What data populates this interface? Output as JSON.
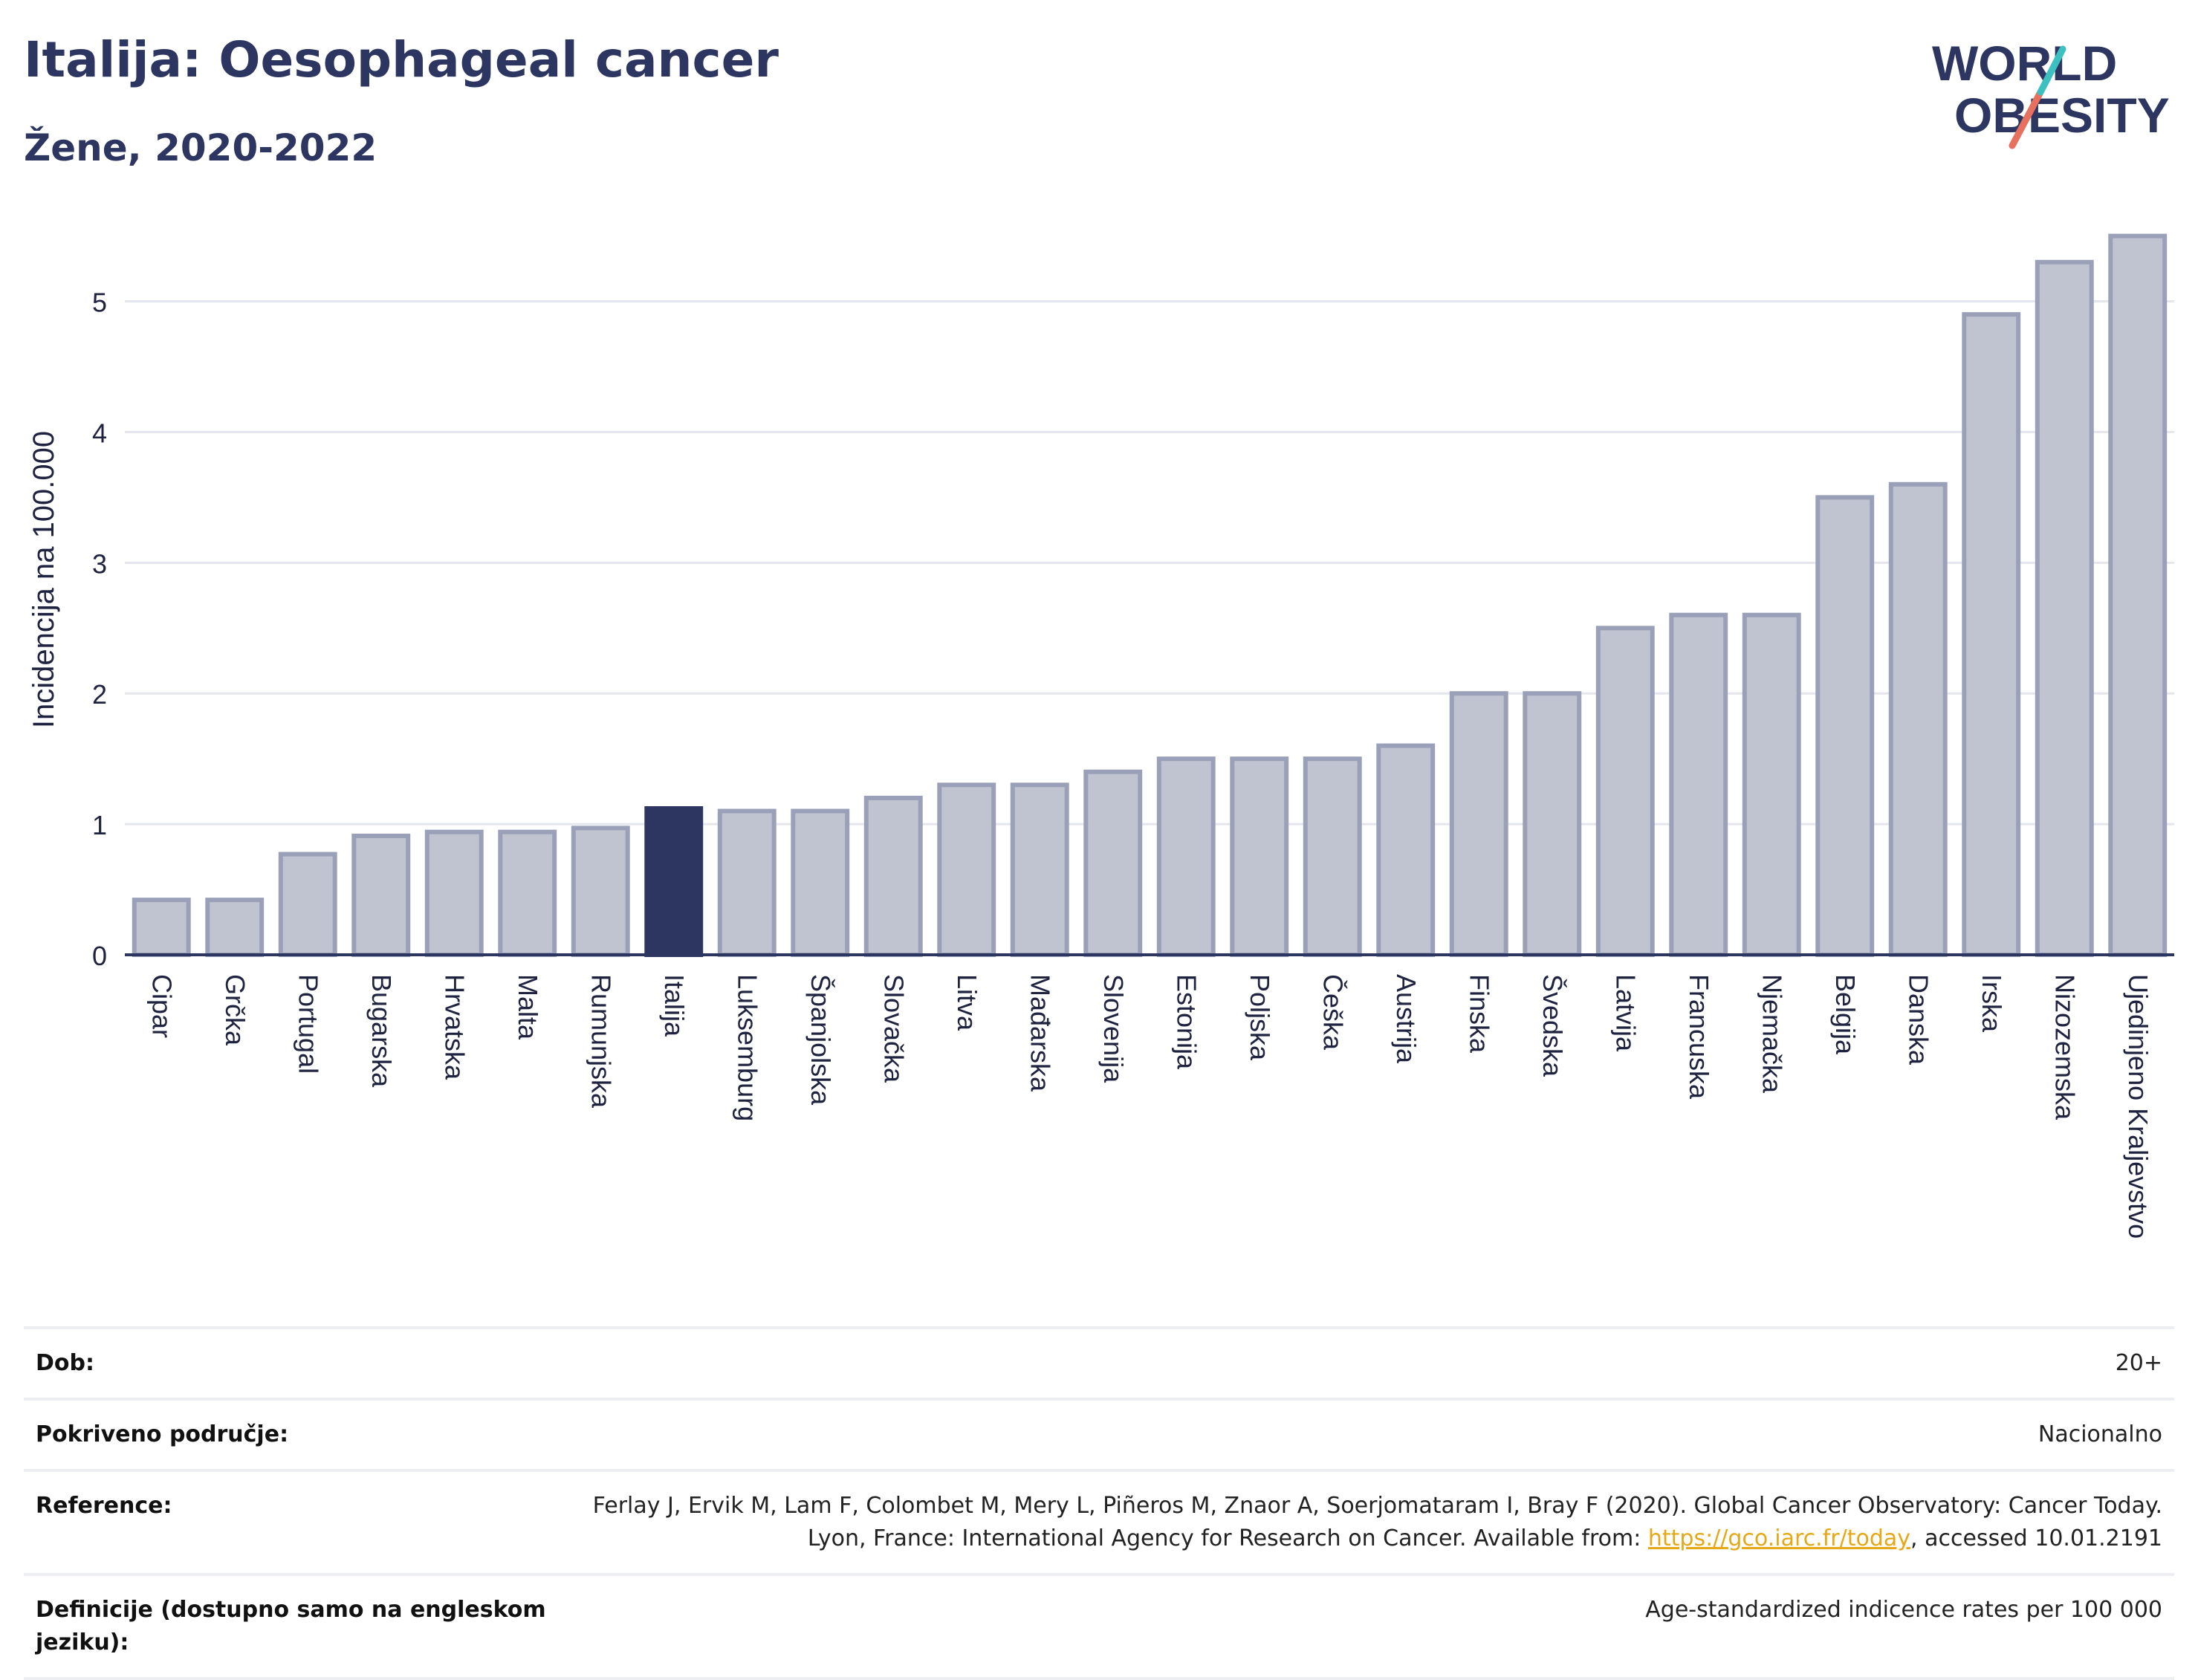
{
  "header": {
    "title": "Italija: Oesophageal cancer",
    "subtitle": "Žene, 2020-2022"
  },
  "logo": {
    "line1": "WORLD",
    "line2": "OBESITY",
    "colors": [
      "#2c3660",
      "#3cc0c0",
      "#e8705e"
    ]
  },
  "chart_data": {
    "type": "bar",
    "ylabel": "Incidencija na 100.000",
    "ylim": [
      0,
      5.6
    ],
    "yticks": [
      0,
      1,
      2,
      3,
      4,
      5
    ],
    "grid": true,
    "highlight": "Italija",
    "colors": {
      "bar": "#c0c3d0",
      "bar_edge": "#9aa0b8",
      "highlight": "#2c3660"
    },
    "categories": [
      "Cipar",
      "Grčka",
      "Portugal",
      "Bugarska",
      "Hrvatska",
      "Malta",
      "Rumunjska",
      "Italija",
      "Luksemburg",
      "Španjolska",
      "Slovačka",
      "Litva",
      "Mađarska",
      "Slovenija",
      "Estonija",
      "Poljska",
      "Češka",
      "Austrija",
      "Finska",
      "Švedska",
      "Latvija",
      "Francuska",
      "Njemačka",
      "Belgija",
      "Danska",
      "Irska",
      "Nizozemska",
      "Ujedinjeno Kraljevstvo"
    ],
    "values": [
      0.42,
      0.42,
      0.77,
      0.91,
      0.94,
      0.94,
      0.97,
      1.12,
      1.1,
      1.1,
      1.2,
      1.3,
      1.3,
      1.4,
      1.5,
      1.5,
      1.5,
      1.6,
      2.0,
      2.0,
      2.5,
      2.6,
      2.6,
      3.5,
      3.6,
      4.9,
      5.3,
      5.5
    ]
  },
  "info": {
    "age_label": "Dob:",
    "age_value": "20+",
    "coverage_label": "Pokriveno područje:",
    "coverage_value": "Nacionalno",
    "reference_label": "Reference:",
    "reference_text_1": "Ferlay J, Ervik M, Lam F, Colombet M, Mery L, Piñeros M, Znaor A, Soerjomataram I, Bray F (2020). Global Cancer Observatory: Cancer Today. Lyon, France: International Agency for Research on Cancer. Available from: ",
    "reference_link": "https://gco.iarc.fr/today",
    "reference_text_2": ", accessed 10.01.2191",
    "definitions_label": "Definicije (dostupno samo na engleskom jeziku):",
    "definitions_value": "Age-standardized indicence rates per 100 000"
  }
}
